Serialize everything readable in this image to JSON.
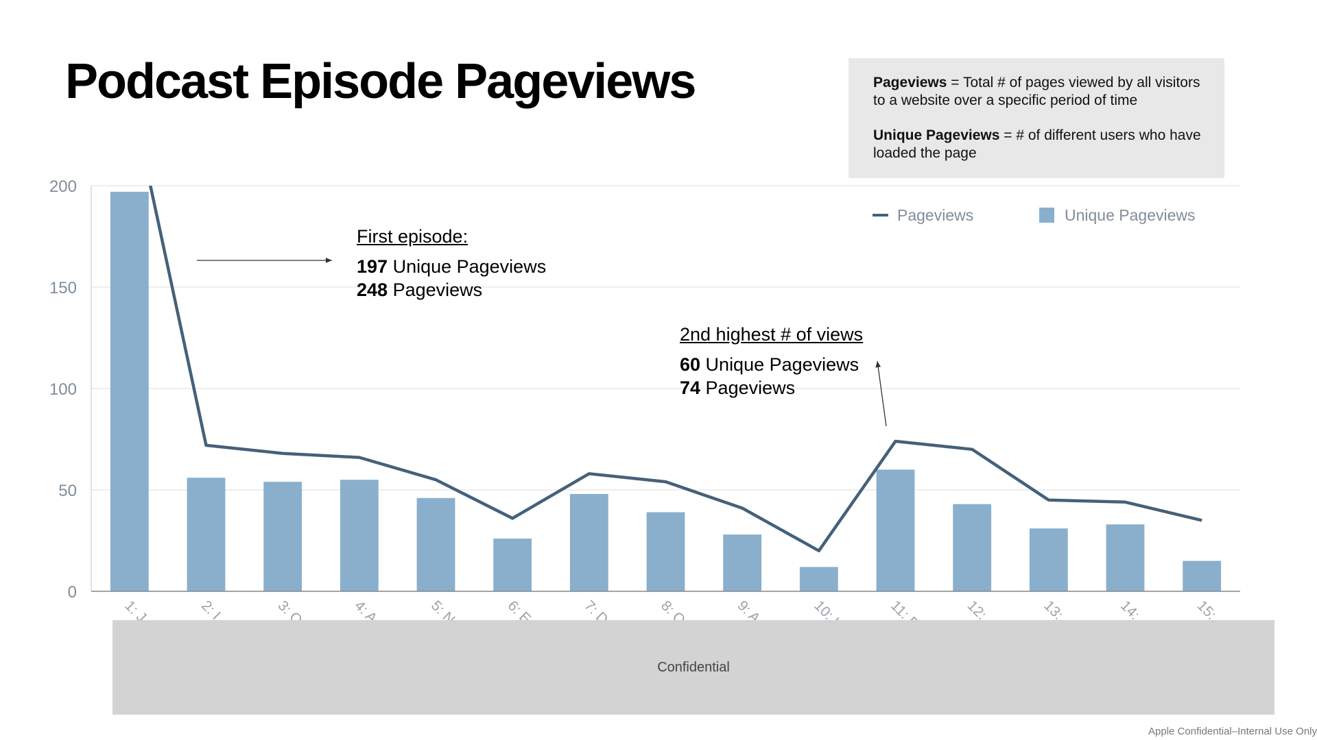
{
  "page": {
    "title": "Podcast Episode Pageviews",
    "footer": "Apple Confidential–Internal Use Only",
    "confidential_label": "Confidential"
  },
  "definitions": {
    "pageviews_term": "Pageviews",
    "pageviews_text": " = Total # of pages viewed by all visitors to a website over a specific period of time",
    "unique_term": "Unique Pageviews",
    "unique_text": " = # of different users who have loaded the page"
  },
  "annotations": {
    "first": {
      "heading": "First episode:",
      "unique_value": "197",
      "unique_label": " Unique Pageviews",
      "page_value": "248",
      "page_label": " Pageviews"
    },
    "second": {
      "heading": "2nd highest # of views",
      "unique_value": "60",
      "unique_label": " Unique Pageviews",
      "page_value": "74",
      "page_label": " Pageviews"
    }
  },
  "chart_data": {
    "type": "bar",
    "categories": [
      "1: J",
      "2: I",
      "3: O",
      "4: A",
      "5: N",
      "6: E",
      "7: D",
      "8: O",
      "9: A",
      "10: I",
      "11: F",
      "12:",
      "13: ",
      "14: ",
      "15: "
    ],
    "series": [
      {
        "name": "Unique Pageviews",
        "type": "bar",
        "color": "#8aafcd",
        "values": [
          197,
          56,
          54,
          55,
          46,
          26,
          48,
          39,
          28,
          12,
          60,
          43,
          31,
          33,
          15
        ]
      },
      {
        "name": "Pageviews",
        "type": "line",
        "color": "#44617b",
        "values": [
          248,
          72,
          68,
          66,
          55,
          36,
          58,
          54,
          41,
          20,
          74,
          70,
          45,
          44,
          35
        ]
      }
    ],
    "ylim": [
      0,
      200
    ],
    "yticks": [
      "0",
      "50",
      "100",
      "150",
      "200"
    ],
    "grid": true,
    "legend": "top-right"
  }
}
